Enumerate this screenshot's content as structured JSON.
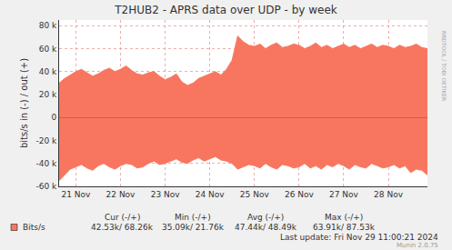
{
  "chart_data": {
    "type": "area",
    "title": "T2HUB2 - APRS data over UDP - by week",
    "y_label": "bits/s in (-) / out (+)",
    "categories": [
      null,
      null,
      null,
      "21 Nov",
      null,
      null,
      null,
      null,
      null,
      null,
      null,
      "22 Nov",
      null,
      null,
      null,
      null,
      null,
      null,
      null,
      "23 Nov",
      null,
      null,
      null,
      null,
      null,
      null,
      null,
      "24 Nov",
      null,
      null,
      null,
      null,
      null,
      null,
      null,
      "25 Nov",
      null,
      null,
      null,
      null,
      null,
      null,
      null,
      "26 Nov",
      null,
      null,
      null,
      null,
      null,
      null,
      null,
      "27 Nov",
      null,
      null,
      null,
      null,
      null,
      null,
      null,
      "28 Nov",
      null,
      null,
      null,
      null,
      null,
      null,
      null
    ],
    "series": [
      {
        "name": "Bits/s",
        "color": "#f8765f",
        "values": [
          30000,
          34000,
          37000,
          40000,
          42000,
          39000,
          36000,
          38000,
          41000,
          43000,
          40000,
          42000,
          45000,
          41000,
          38000,
          37000,
          39000,
          40000,
          36000,
          33000,
          35000,
          38000,
          31000,
          28000,
          30000,
          34000,
          36000,
          38000,
          40000,
          37000,
          42000,
          50000,
          71000,
          66000,
          63000,
          62000,
          64000,
          60000,
          63000,
          65000,
          61000,
          62000,
          64000,
          63000,
          60000,
          62000,
          65000,
          61000,
          63000,
          60000,
          62000,
          64000,
          61000,
          63000,
          60000,
          62000,
          64000,
          61000,
          63000,
          62000,
          60000,
          63000,
          61000,
          62000,
          64000,
          61000,
          60000
        ],
        "values_in": [
          -55000,
          -50000,
          -45000,
          -43000,
          -41000,
          -44000,
          -46000,
          -42000,
          -40000,
          -43000,
          -45000,
          -42000,
          -40000,
          -41000,
          -44000,
          -43000,
          -40000,
          -38000,
          -41000,
          -40000,
          -38000,
          -36000,
          -39000,
          -40000,
          -37000,
          -35000,
          -38000,
          -36000,
          -34000,
          -37000,
          -38000,
          -40000,
          -45000,
          -43000,
          -41000,
          -42000,
          -44000,
          -40000,
          -43000,
          -45000,
          -41000,
          -42000,
          -44000,
          -43000,
          -40000,
          -44000,
          -42000,
          -45000,
          -41000,
          -43000,
          -40000,
          -42000,
          -45000,
          -41000,
          -43000,
          -44000,
          -40000,
          -42000,
          -44000,
          -43000,
          -41000,
          -44000,
          -42000,
          -48000,
          -45000,
          -46000,
          -50000
        ]
      }
    ],
    "ylim": [
      -60000,
      85000
    ],
    "yticks": [
      {
        "value": -60000,
        "label": "-60 k"
      },
      {
        "value": -40000,
        "label": "-40 k"
      },
      {
        "value": -20000,
        "label": "-20 k"
      },
      0,
      {
        "value": 20000,
        "label": "20 k"
      },
      {
        "value": 40000,
        "label": "40 k"
      },
      {
        "value": 60000,
        "label": "60 k"
      },
      {
        "value": 80000,
        "label": "80 k"
      }
    ],
    "grid": true,
    "summary": {
      "headers": [
        "Cur (-/+)",
        "Min (-/+)",
        "Avg (-/+)",
        "Max (-/+)"
      ],
      "rows": [
        {
          "name": "Bits/s",
          "values": [
            "42.53k/ 68.26k",
            "35.09k/ 21.76k",
            "47.44k/ 48.49k",
            "63.91k/ 87.53k"
          ]
        }
      ]
    },
    "last_update": "Last update: Fri Nov 29 11:00:21 2024",
    "footer": "Munin 2.0.75",
    "side_text": "RRDTOOL / TOBI OETIKER"
  }
}
